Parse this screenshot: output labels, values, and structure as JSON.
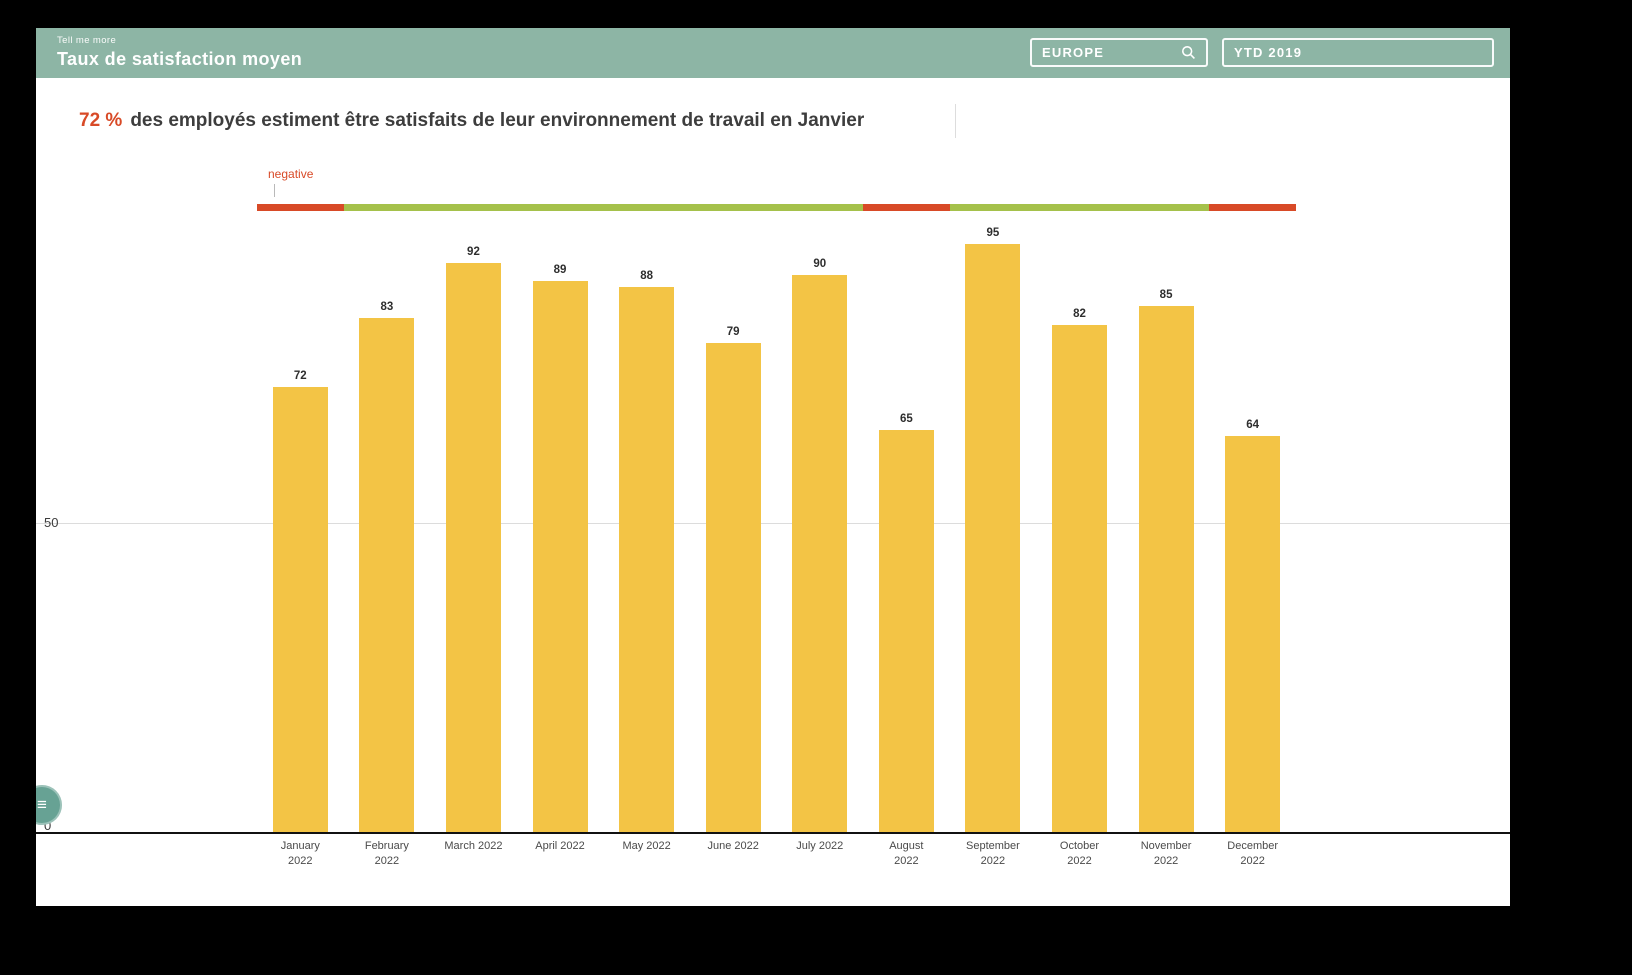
{
  "header": {
    "pretitle": "Tell me more",
    "title": "Taux de satisfaction moyen",
    "region_filter": {
      "value": "EUROPE"
    },
    "period_filter": {
      "value": "YTD 2019"
    }
  },
  "headline": {
    "highlight": "72 %",
    "text": "des employés estiment être satisfaits de leur environnement de travail en Janvier"
  },
  "sentiment_timeline": {
    "label": "negative",
    "segments": [
      {
        "month": "January 2022",
        "sentiment": "negative"
      },
      {
        "month": "February 2022",
        "sentiment": "positive"
      },
      {
        "month": "March 2022",
        "sentiment": "positive"
      },
      {
        "month": "April 2022",
        "sentiment": "positive"
      },
      {
        "month": "May 2022",
        "sentiment": "positive"
      },
      {
        "month": "June 2022",
        "sentiment": "positive"
      },
      {
        "month": "July 2022",
        "sentiment": "positive"
      },
      {
        "month": "August 2022",
        "sentiment": "negative"
      },
      {
        "month": "September 2022",
        "sentiment": "positive"
      },
      {
        "month": "October 2022",
        "sentiment": "positive"
      },
      {
        "month": "November 2022",
        "sentiment": "positive"
      },
      {
        "month": "December 2022",
        "sentiment": "negative"
      }
    ]
  },
  "chart_data": {
    "type": "bar",
    "title": "Taux de satisfaction moyen",
    "categories": [
      "January 2022",
      "February 2022",
      "March 2022",
      "April 2022",
      "May 2022",
      "June 2022",
      "July 2022",
      "August 2022",
      "September 2022",
      "October 2022",
      "November 2022",
      "December 2022"
    ],
    "values": [
      72,
      83,
      92,
      89,
      88,
      79,
      90,
      65,
      95,
      82,
      85,
      64
    ],
    "xlabel": "",
    "ylabel": "",
    "ylim": [
      0,
      100
    ],
    "yticks": [
      0,
      50
    ],
    "grid": "horizontal-at-50",
    "legend": "none",
    "bar_color": "#F3C445"
  },
  "floating_button": {
    "icon_glyph": "≡"
  },
  "colors": {
    "header_teal": "#8DB5A5",
    "button_teal": "#67A294",
    "accent_red": "#D84A27",
    "accent_green": "#A5C14B",
    "bar_amber": "#F3C445"
  }
}
